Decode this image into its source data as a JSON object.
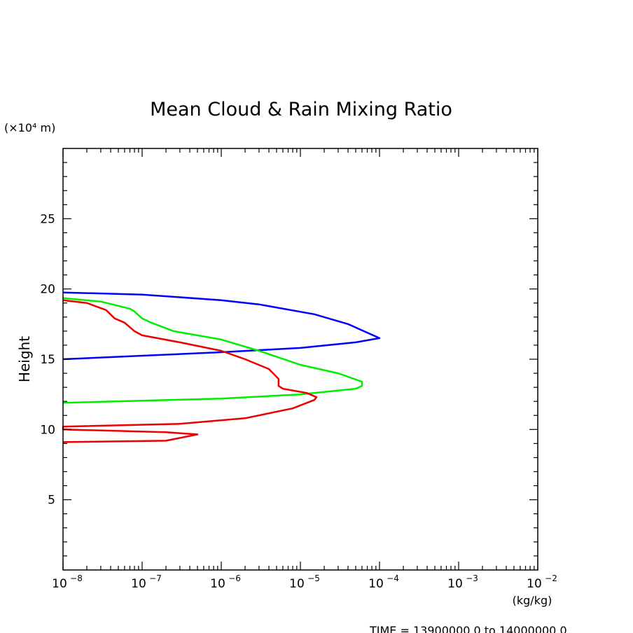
{
  "chart_data": {
    "type": "line",
    "title": "Mean Cloud & Rain Mixing Ratio",
    "xlabel": "(kg/kg)",
    "ylabel": "Height",
    "y_unit_label": "(×10⁴ m)",
    "footer": "TIME = 13900000.0 to 14000000.0",
    "x_scale": "log",
    "xlim": [
      1e-08,
      0.01
    ],
    "ylim": [
      0,
      30
    ],
    "x_ticks": [
      {
        "value": 1e-08,
        "base": "10",
        "exp": "−8"
      },
      {
        "value": 1e-07,
        "base": "10",
        "exp": "−7"
      },
      {
        "value": 1e-06,
        "base": "10",
        "exp": "−6"
      },
      {
        "value": 1e-05,
        "base": "10",
        "exp": "−5"
      },
      {
        "value": 0.0001,
        "base": "10",
        "exp": "−4"
      },
      {
        "value": 0.001,
        "base": "10",
        "exp": "−3"
      },
      {
        "value": 0.01,
        "base": "10",
        "exp": "−2"
      }
    ],
    "y_ticks": [
      {
        "value": 5,
        "label": "5"
      },
      {
        "value": 10,
        "label": "10"
      },
      {
        "value": 15,
        "label": "15"
      },
      {
        "value": 20,
        "label": "20"
      },
      {
        "value": 25,
        "label": "25"
      }
    ],
    "grid": false,
    "series": [
      {
        "color": "#0000ff",
        "points": [
          [
            1e-08,
            15.0
          ],
          [
            1e-06,
            15.5
          ],
          [
            1e-05,
            15.8
          ],
          [
            5e-05,
            16.2
          ],
          [
            0.0001,
            16.5
          ],
          [
            4e-05,
            17.5
          ],
          [
            1.5e-05,
            18.2
          ],
          [
            3e-06,
            18.9
          ],
          [
            1e-06,
            19.2
          ],
          [
            1e-07,
            19.6
          ],
          [
            1e-08,
            19.75
          ]
        ]
      },
      {
        "color": "#00ee00",
        "points": [
          [
            1e-08,
            11.9
          ],
          [
            1e-06,
            12.2
          ],
          [
            1e-05,
            12.5
          ],
          [
            5e-05,
            12.9
          ],
          [
            6e-05,
            13.1
          ],
          [
            6e-05,
            13.4
          ],
          [
            3e-05,
            14.0
          ],
          [
            1e-05,
            14.6
          ],
          [
            3e-06,
            15.6
          ],
          [
            1e-06,
            16.4
          ],
          [
            2.5e-07,
            17.0
          ],
          [
            1.3e-07,
            17.6
          ],
          [
            1e-07,
            17.9
          ],
          [
            8e-08,
            18.4
          ],
          [
            7e-08,
            18.6
          ],
          [
            3e-08,
            19.1
          ],
          [
            1e-08,
            19.35
          ]
        ]
      },
      {
        "color": "#ee0000",
        "points": [
          [
            1e-08,
            9.1
          ],
          [
            2e-07,
            9.2
          ],
          [
            5e-07,
            9.65
          ],
          [
            2e-07,
            9.8
          ],
          [
            1e-08,
            10.0
          ],
          [
            1e-08,
            10.2
          ],
          [
            3e-07,
            10.4
          ],
          [
            2e-06,
            10.8
          ],
          [
            8e-06,
            11.5
          ],
          [
            1.5e-05,
            12.1
          ],
          [
            1.6e-05,
            12.3
          ],
          [
            1.2e-05,
            12.6
          ],
          [
            6e-06,
            12.9
          ],
          [
            5.3e-06,
            13.1
          ],
          [
            5.3e-06,
            13.6
          ],
          [
            4e-06,
            14.3
          ],
          [
            2e-06,
            15.0
          ],
          [
            1e-06,
            15.6
          ],
          [
            3e-07,
            16.2
          ],
          [
            1e-07,
            16.7
          ],
          [
            8e-08,
            17.0
          ],
          [
            6e-08,
            17.6
          ],
          [
            4.5e-08,
            17.9
          ],
          [
            3.5e-08,
            18.5
          ],
          [
            2e-08,
            19.0
          ],
          [
            1e-08,
            19.2
          ]
        ]
      }
    ]
  }
}
